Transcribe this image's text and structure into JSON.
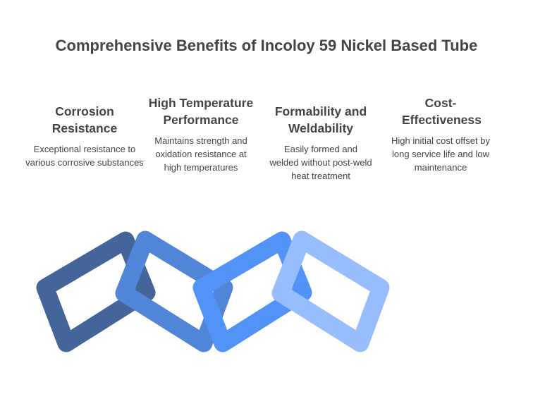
{
  "title": "Comprehensive Benefits of Incoloy 59 Nickel Based Tube",
  "benefits": [
    {
      "heading": "Corrosion Resistance",
      "text": "Exceptional resistance to various corrosive substances",
      "color": "#44659a"
    },
    {
      "heading": "High Temperature Performance",
      "text": "Maintains strength and oxidation resistance at high temperatures",
      "color": "#5185d8"
    },
    {
      "heading": "Formability and Weldability",
      "text": "Easily formed and welded without post-weld heat treatment",
      "color": "#5193f7"
    },
    {
      "heading": "Cost-Effectiveness",
      "text": "High initial cost offset by long service life and low maintenance",
      "color": "#98bdfc"
    }
  ]
}
